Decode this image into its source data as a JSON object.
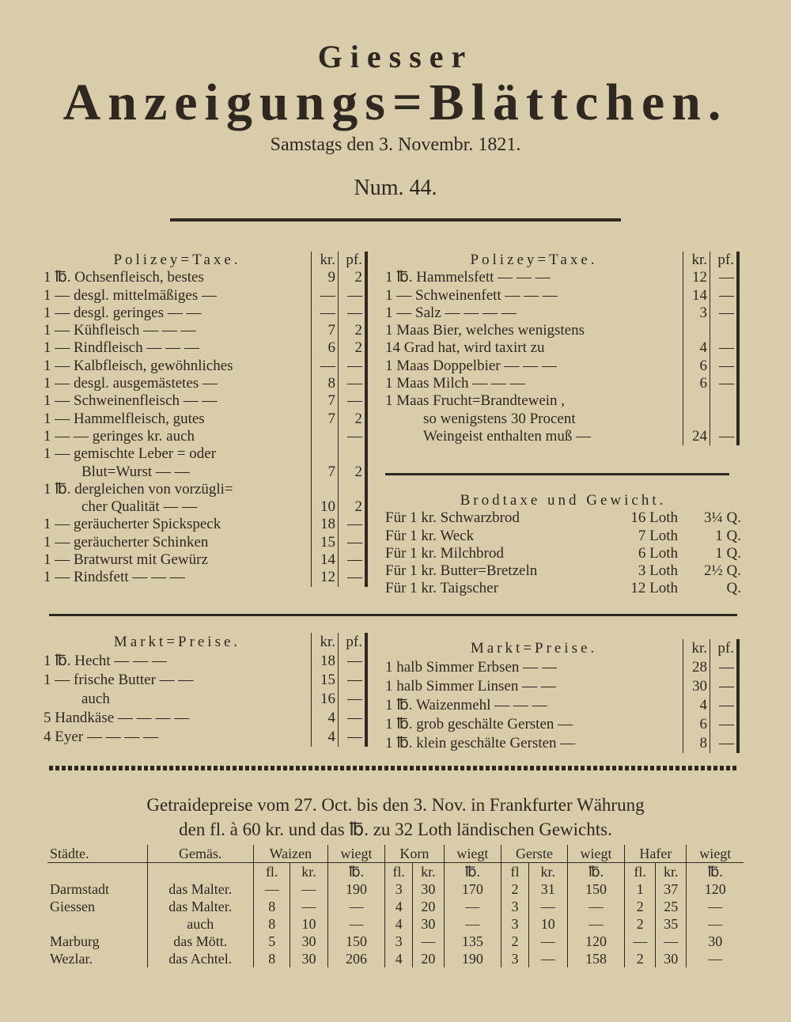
{
  "masthead": {
    "line1": "Giesser",
    "line2": "Anzeigungs=Blättchen.",
    "date": "Samstags den 3. Novembr. 1821.",
    "number": "Num. 44."
  },
  "left_taxe": {
    "heading": "Polizey=Taxe.",
    "col1": "kr.",
    "col2": "pf.",
    "rows": [
      [
        "1 ℔. Ochsenfleisch, bestes",
        "9",
        "2"
      ],
      [
        "1 — desgl. mittelmäßiges —",
        "—",
        "—"
      ],
      [
        "1 — desgl. geringes — —",
        "—",
        "—"
      ],
      [
        "1 — Kühfleisch — — —",
        "7",
        "2"
      ],
      [
        "1 — Rindfleisch — — —",
        "6",
        "2"
      ],
      [
        "1 — Kalbfleisch, gewöhnliches",
        "—",
        "—"
      ],
      [
        "1 — desgl. ausgemästetes —",
        "8",
        "—"
      ],
      [
        "1 — Schweinenfleisch — —",
        "7",
        "—"
      ],
      [
        "1 — Hammelfleisch, gutes",
        "7",
        "2"
      ],
      [
        "1 — — geringes kr. auch",
        "",
        "—"
      ],
      [
        "1 — gemischte Leber = oder",
        "",
        ""
      ],
      [
        "Blut=Wurst — —",
        "7",
        "2"
      ],
      [
        "1 ℔. dergleichen von vorzügli=",
        "",
        ""
      ],
      [
        "cher Qualität — —",
        "10",
        "2"
      ],
      [
        "1 — geräucherter Spickspeck",
        "18",
        "—"
      ],
      [
        "1 — geräucherter Schinken",
        "15",
        "—"
      ],
      [
        "1 — Bratwurst mit Gewürz",
        "14",
        "—"
      ],
      [
        "1 — Rindsfett — — —",
        "12",
        "—"
      ]
    ]
  },
  "right_taxe": {
    "heading": "Polizey=Taxe.",
    "col1": "kr.",
    "col2": "pf.",
    "rows": [
      [
        "1 ℔. Hammelsfett — — —",
        "12",
        "—"
      ],
      [
        "1 — Schweinenfett — — —",
        "14",
        "—"
      ],
      [
        "1 — Salz — — — —",
        "3",
        "—"
      ],
      [
        "1 Maas Bier, welches wenigstens",
        "",
        ""
      ],
      [
        "14 Grad hat, wird taxirt zu",
        "4",
        "—"
      ],
      [
        "1 Maas Doppelbier — — —",
        "6",
        "—"
      ],
      [
        "1 Maas Milch — — —",
        "6",
        "—"
      ],
      [
        "1 Maas Frucht=Brandtewein ,",
        "",
        ""
      ],
      [
        "so wenigstens 30 Procent",
        "",
        ""
      ],
      [
        "Weingeist enthalten muß —",
        "24",
        "—"
      ]
    ]
  },
  "brodtaxe": {
    "heading": "Brodtaxe und Gewicht.",
    "rows": [
      [
        "Für 1 kr. Schwarzbrod",
        "16 Loth",
        "3¼ Q."
      ],
      [
        "Für 1 kr. Weck",
        "7 Loth",
        "1 Q."
      ],
      [
        "Für 1 kr. Milchbrod",
        "6 Loth",
        "1 Q."
      ],
      [
        "Für 1 kr. Butter=Bretzeln",
        "3 Loth",
        "2½ Q."
      ],
      [
        "Für 1 kr. Taigscher",
        "12 Loth",
        "Q."
      ]
    ]
  },
  "markt_left": {
    "heading": "Markt=Preise.",
    "col1": "kr.",
    "col2": "pf.",
    "rows": [
      [
        "1 ℔. Hecht — — —",
        "18",
        "—"
      ],
      [
        "1 — frische Butter — —",
        "15",
        "—"
      ],
      [
        "auch",
        "16",
        "—"
      ],
      [
        "5 Handkäse — — — —",
        "4",
        "—"
      ],
      [
        "4 Eyer — — — —",
        "4",
        "—"
      ]
    ]
  },
  "markt_right": {
    "heading": "Markt=Preise.",
    "col1": "kr.",
    "col2": "pf.",
    "rows": [
      [
        "1 halb Simmer Erbsen — —",
        "28",
        "—"
      ],
      [
        "1 halb Simmer Linsen — —",
        "30",
        "—"
      ],
      [
        "1 ℔. Waizenmehl — — —",
        "4",
        "—"
      ],
      [
        "1 ℔. grob geschälte Gersten —",
        "6",
        "—"
      ],
      [
        "1 ℔. klein geschälte Gersten —",
        "8",
        "—"
      ]
    ]
  },
  "getraide": {
    "heading1": "Getraidepreise vom 27. Oct. bis den 3. Nov. in Frankfurter Währung",
    "heading2": "den fl. à 60 kr. und das ℔. zu 32 Loth ländischen Gewichts.",
    "headers": [
      "Städte.",
      "Gemäs.",
      "Waizen",
      "wiegt",
      "Korn",
      "wiegt",
      "Gerste",
      "wiegt",
      "Hafer",
      "wiegt"
    ],
    "subheaders": [
      "",
      "",
      "fl.",
      "kr.",
      "℔.",
      "fl.",
      "kr.",
      "℔.",
      "fl",
      "kr.",
      "℔.",
      "fl.",
      "kr.",
      "℔."
    ],
    "rows": [
      [
        "Darmstadt",
        "das Malter.",
        "—",
        "—",
        "190",
        "3",
        "30",
        "170",
        "2",
        "31",
        "150",
        "1",
        "37",
        "120"
      ],
      [
        "Giessen",
        "das Malter.",
        "8",
        "—",
        "—",
        "4",
        "20",
        "—",
        "3",
        "—",
        "—",
        "2",
        "25",
        "—"
      ],
      [
        "",
        "auch",
        "8",
        "10",
        "—",
        "4",
        "30",
        "—",
        "3",
        "10",
        "—",
        "2",
        "35",
        "—"
      ],
      [
        "Marburg",
        "das Mött.",
        "5",
        "30",
        "150",
        "3",
        "—",
        "135",
        "2",
        "—",
        "120",
        "—",
        "—",
        "30"
      ],
      [
        "Wezlar.",
        "das Achtel.",
        "8",
        "30",
        "206",
        "4",
        "20",
        "190",
        "3",
        "—",
        "158",
        "2",
        "30",
        "—"
      ]
    ]
  }
}
